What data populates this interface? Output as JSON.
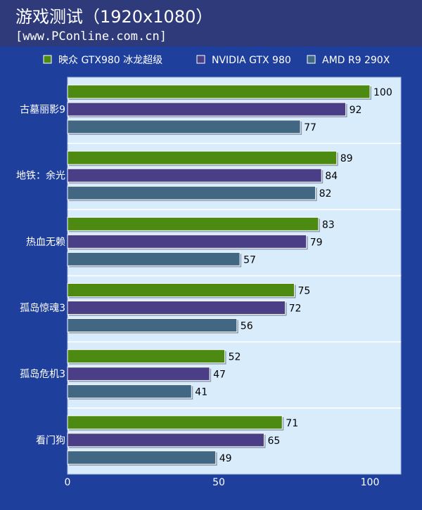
{
  "header": {
    "title": "游戏测试（1920x1080）",
    "subtitle": "[www.PConline.com.cn]"
  },
  "colors": {
    "background": "#1f3f9c",
    "header": "#2e3a7a",
    "plot": "#d9ecfb",
    "series": [
      "#4c8a12",
      "#4a3f86",
      "#416783"
    ]
  },
  "chart_data": {
    "type": "bar",
    "orientation": "horizontal",
    "categories": [
      "古墓丽影9",
      "地铁：余光",
      "热血无赖",
      "孤岛惊魂3",
      "孤岛危机3",
      "看门狗"
    ],
    "series": [
      {
        "name": "映众 GTX980 冰龙超级",
        "values": [
          100,
          89,
          83,
          75,
          52,
          71
        ]
      },
      {
        "name": "NVIDIA GTX 980",
        "values": [
          92,
          84,
          79,
          72,
          47,
          65
        ]
      },
      {
        "name": "AMD R9 290X",
        "values": [
          77,
          82,
          57,
          56,
          41,
          49
        ]
      }
    ],
    "xlim": [
      0,
      100
    ],
    "xticks": [
      "0",
      "50",
      "100"
    ],
    "legend": "top",
    "data_labels": true
  }
}
